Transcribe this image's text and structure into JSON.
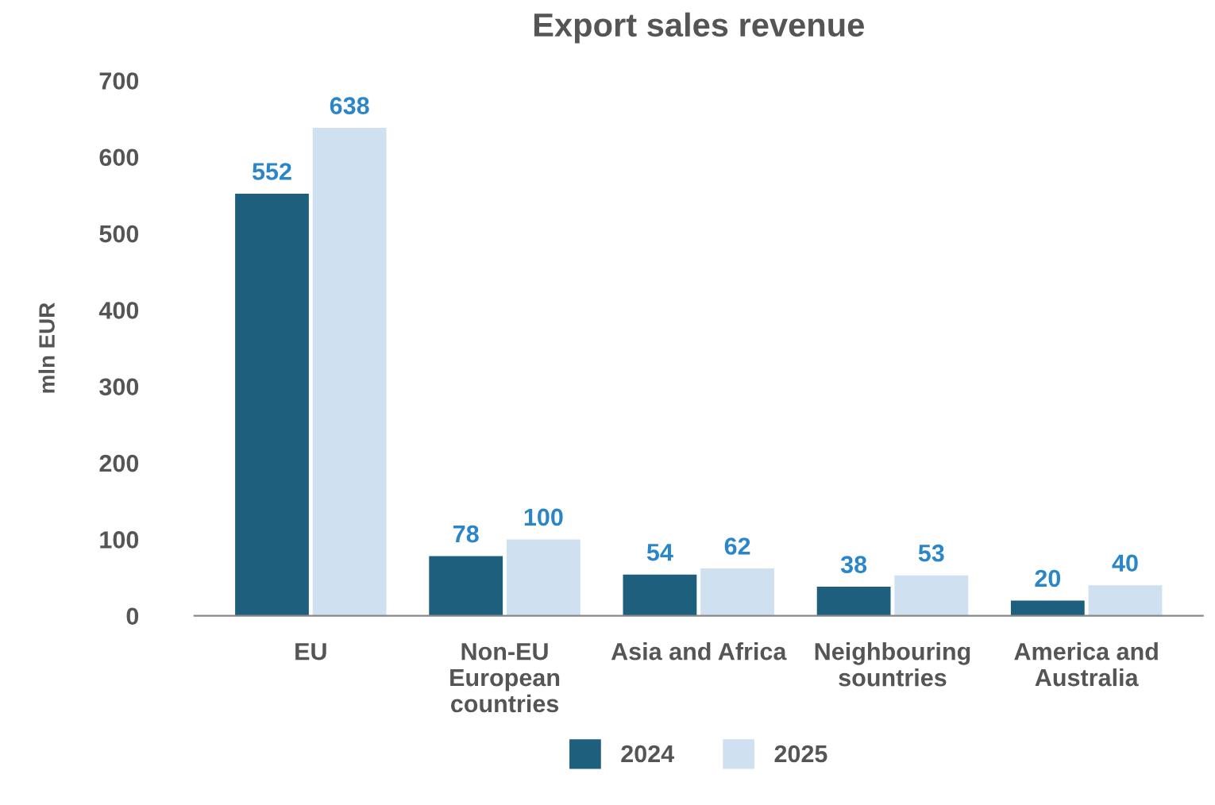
{
  "chart_data": {
    "type": "bar",
    "title": "Export sales revenue",
    "ylabel": "mln EUR",
    "categories": [
      "EU",
      "Non-EU\nEuropean\ncountries",
      "Asia and Africa",
      "Neighbouring\nsountries",
      "America and\nAustralia"
    ],
    "series": [
      {
        "name": "2024",
        "color": "#1f5f7e",
        "values": [
          552,
          78,
          54,
          38,
          20
        ]
      },
      {
        "name": "2025",
        "color": "#cfe0f1",
        "values": [
          638,
          100,
          62,
          53,
          40
        ]
      }
    ],
    "ylim": [
      0,
      700
    ],
    "yticks": [
      0,
      100,
      200,
      300,
      400,
      500,
      600,
      700
    ],
    "data_labels": true,
    "grid": false,
    "legend": "bottom"
  }
}
